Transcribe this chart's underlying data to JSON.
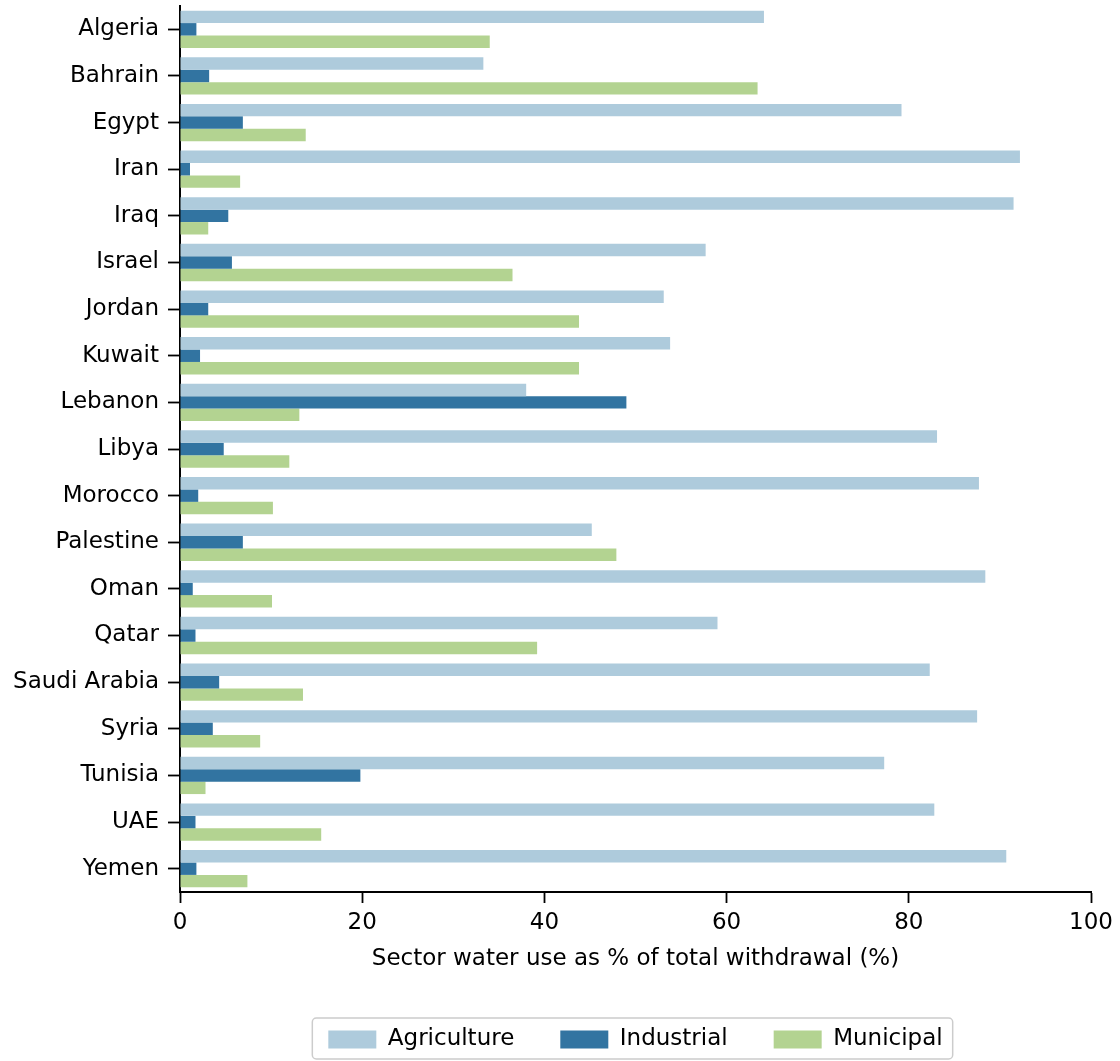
{
  "chart_data": {
    "type": "bar",
    "orientation": "horizontal",
    "categories": [
      "Algeria",
      "Bahrain",
      "Egypt",
      "Iran",
      "Iraq",
      "Israel",
      "Jordan",
      "Kuwait",
      "Lebanon",
      "Libya",
      "Morocco",
      "Palestine",
      "Oman",
      "Qatar",
      "Saudi Arabia",
      "Syria",
      "Tunisia",
      "UAE",
      "Yemen"
    ],
    "series": [
      {
        "name": "Agriculture",
        "color": "#aecbdc",
        "values": [
          64.1,
          33.3,
          79.2,
          92.2,
          91.5,
          57.7,
          53.1,
          53.8,
          38.0,
          83.1,
          87.7,
          45.2,
          88.4,
          59.0,
          82.3,
          87.5,
          77.3,
          82.8,
          90.7
        ]
      },
      {
        "name": "Industrial",
        "color": "#3274a1",
        "values": [
          1.8,
          3.2,
          6.9,
          1.1,
          5.3,
          5.7,
          3.1,
          2.2,
          49.0,
          4.8,
          2.0,
          6.9,
          1.4,
          1.7,
          4.3,
          3.6,
          19.8,
          1.7,
          1.8
        ]
      },
      {
        "name": "Municipal",
        "color": "#b3d391",
        "values": [
          34.0,
          63.4,
          13.8,
          6.6,
          3.1,
          36.5,
          43.8,
          43.8,
          13.1,
          12.0,
          10.2,
          47.9,
          10.1,
          39.2,
          13.5,
          8.8,
          2.8,
          15.5,
          7.4
        ]
      }
    ],
    "xlabel": "Sector water use as % of total withdrawal (%)",
    "xlim": [
      0,
      100
    ],
    "xticks": [
      0,
      20,
      40,
      60,
      80,
      100
    ],
    "legend": "bottom"
  }
}
